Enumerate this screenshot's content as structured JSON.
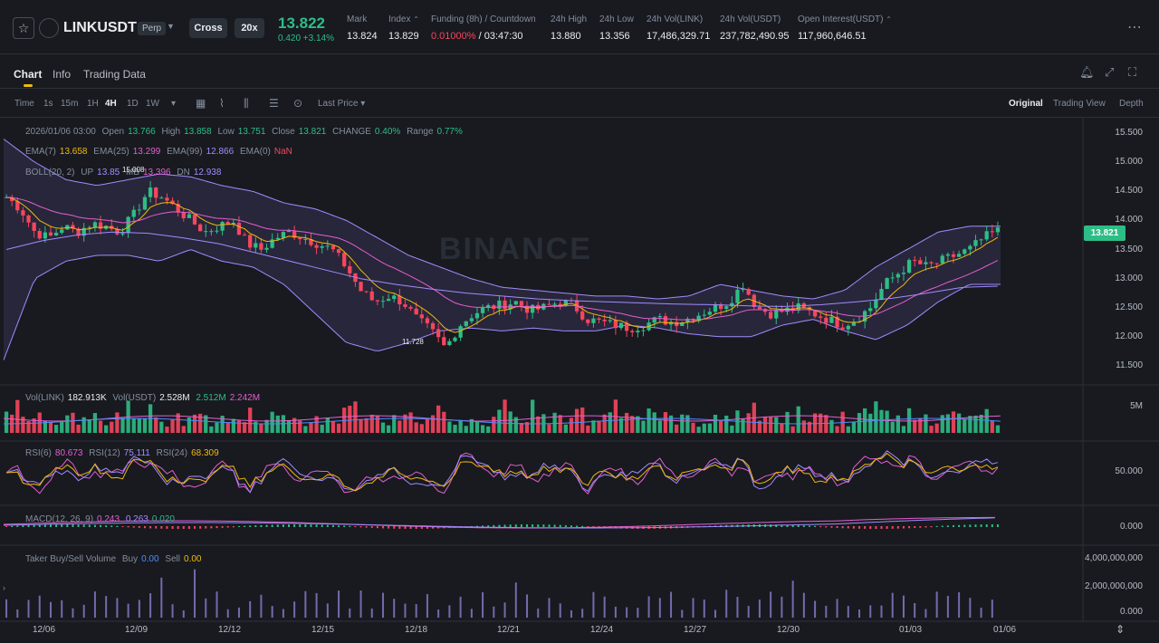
{
  "header": {
    "symbol": "LINKUSDT",
    "contract_type": "Perp",
    "margin_mode": "Cross",
    "leverage": "20x",
    "last_price": "13.822",
    "price_change": "0.420 +3.14%",
    "stats": [
      {
        "label": "Mark",
        "value": "13.824"
      },
      {
        "label": "Index",
        "value": "13.829"
      },
      {
        "label": "Funding (8h) / Countdown",
        "value_red": "0.01000%",
        "value": " / 03:47:30"
      },
      {
        "label": "24h High",
        "value": "13.880"
      },
      {
        "label": "24h Low",
        "value": "13.356"
      },
      {
        "label": "24h Vol(LINK)",
        "value": "17,486,329.71"
      },
      {
        "label": "24h Vol(USDT)",
        "value": "237,782,490.95"
      },
      {
        "label": "Open Interest(USDT)",
        "value": "117,960,646.51"
      }
    ],
    "colors": {
      "up": "#2ebd85",
      "down": "#f6465d",
      "accent": "#f0b90b"
    }
  },
  "tabs": [
    {
      "label": "Chart",
      "active": true
    },
    {
      "label": "Info",
      "active": false
    },
    {
      "label": "Trading Data",
      "active": false
    }
  ],
  "toolbar": {
    "intervals": [
      "Time",
      "1s",
      "15m",
      "1H",
      "4H",
      "1D",
      "1W"
    ],
    "active_interval": "4H",
    "price_type": "Last Price",
    "views": [
      "Original",
      "Trading View",
      "Depth"
    ],
    "active_view": "Original"
  },
  "legend": {
    "ohlc": {
      "date": "2026/01/06 03:00",
      "open_label": "Open",
      "open": "13.766",
      "high_label": "High",
      "high": "13.858",
      "low_label": "Low",
      "low": "13.751",
      "close_label": "Close",
      "close": "13.821",
      "change_label": "CHANGE",
      "change": "0.40%",
      "range_label": "Range",
      "range": "0.77%"
    },
    "ema": {
      "ema7_label": "EMA(7)",
      "ema7": "13.658",
      "ema25_label": "EMA(25)",
      "ema25": "13.299",
      "ema99_label": "EMA(99)",
      "ema99": "12.866",
      "ema0_label": "EMA(0)",
      "ema0": "NaN"
    },
    "boll": {
      "label": "BOLL(20, 2)",
      "up_label": "UP",
      "up": "13.85",
      "mb_label": "MB",
      "mb": "13.396",
      "dn_label": "DN",
      "dn": "12.938"
    },
    "vol": {
      "link_label": "Vol(LINK)",
      "link": "182.913K",
      "usdt_label": "Vol(USDT)",
      "usdt": "2.528M",
      "ma1": "2.512M",
      "ma2": "2.242M"
    },
    "rsi": {
      "rsi6_label": "RSI(6)",
      "rsi6": "80.673",
      "rsi12_label": "RSI(12)",
      "rsi12": "75.111",
      "rsi24_label": "RSI(24)",
      "rsi24": "68.309"
    },
    "macd": {
      "label": "MACD(12, 26, 9)",
      "dif": "0.243",
      "dea": "0.263",
      "hist": "0.020"
    },
    "taker": {
      "label": "Taker Buy/Sell Volume",
      "buy_label": "Buy",
      "buy": "0.00",
      "sell_label": "Sell",
      "sell": "0.00"
    }
  },
  "annotations": {
    "high_marker": "15.008",
    "low_marker": "11.728"
  },
  "watermark": "BINANCE",
  "current_price_tag": "13.821",
  "chart_data": {
    "type": "candlestick",
    "price_axis": [
      "15.500",
      "15.000",
      "14.500",
      "14.000",
      "13.500",
      "13.000",
      "12.500",
      "12.000",
      "11.500"
    ],
    "price_range": [
      11.25,
      15.75
    ],
    "volume_axis": [
      "5M"
    ],
    "rsi_axis": [
      "50.000"
    ],
    "macd_axis": [
      "0.000"
    ],
    "taker_axis": [
      "4,000,000,000",
      "2,000,000,000",
      "0.000"
    ],
    "x_ticks": [
      "12/06",
      "12/09",
      "12/12",
      "12/15",
      "12/18",
      "12/21",
      "12/24",
      "12/27",
      "12/30",
      "01/03",
      "01/06"
    ],
    "close_path": [
      14.4,
      14.2,
      13.8,
      13.7,
      13.9,
      13.8,
      13.95,
      13.9,
      13.8,
      14.1,
      14.5,
      14.4,
      14.2,
      14.0,
      13.8,
      13.9,
      14.0,
      13.6,
      13.5,
      13.7,
      13.8,
      13.7,
      13.6,
      13.5,
      13.2,
      12.8,
      12.6,
      12.7,
      12.6,
      12.3,
      12.1,
      11.8,
      12.2,
      12.4,
      12.5,
      12.55,
      12.6,
      12.45,
      12.5,
      12.6,
      12.55,
      12.3,
      12.25,
      12.2,
      12.15,
      12.2,
      12.3,
      12.25,
      12.3,
      12.4,
      12.5,
      12.6,
      12.9,
      12.5,
      12.4,
      12.45,
      12.5,
      12.4,
      12.3,
      12.2,
      12.3,
      12.5,
      12.9,
      13.1,
      13.3,
      13.2,
      13.3,
      13.4,
      13.5,
      13.7,
      13.82
    ],
    "boll_upper": [
      15.4,
      15.0,
      14.7,
      14.6,
      14.7,
      14.8,
      14.75,
      14.6,
      14.5,
      14.3,
      14.2,
      14.0,
      13.7,
      13.4,
      13.2,
      13.0,
      12.85,
      12.8,
      12.75,
      12.7,
      12.7,
      12.65,
      12.7,
      12.9,
      12.8,
      12.7,
      12.65,
      12.8,
      13.2,
      13.5,
      13.8,
      13.9,
      13.9
    ],
    "boll_lower": [
      11.6,
      13.0,
      13.3,
      13.4,
      13.4,
      13.3,
      13.5,
      13.3,
      13.2,
      12.9,
      12.4,
      11.9,
      11.75,
      11.9,
      12.1,
      12.15,
      12.1,
      12.15,
      12.1,
      12.1,
      12.2,
      12.15,
      12.05,
      12.0,
      12.0,
      12.2,
      12.3,
      12.1,
      11.95,
      12.2,
      12.6,
      12.9,
      12.9
    ],
    "ema99": [
      13.5,
      13.65,
      13.75,
      13.8,
      13.78,
      13.7,
      13.6,
      13.45,
      13.3,
      13.15,
      13.0,
      12.9,
      12.82,
      12.75,
      12.7,
      12.65,
      12.62,
      12.6,
      12.58,
      12.56,
      12.55,
      12.53,
      12.52,
      12.55,
      12.6,
      12.66,
      12.75,
      12.85,
      12.87
    ]
  }
}
